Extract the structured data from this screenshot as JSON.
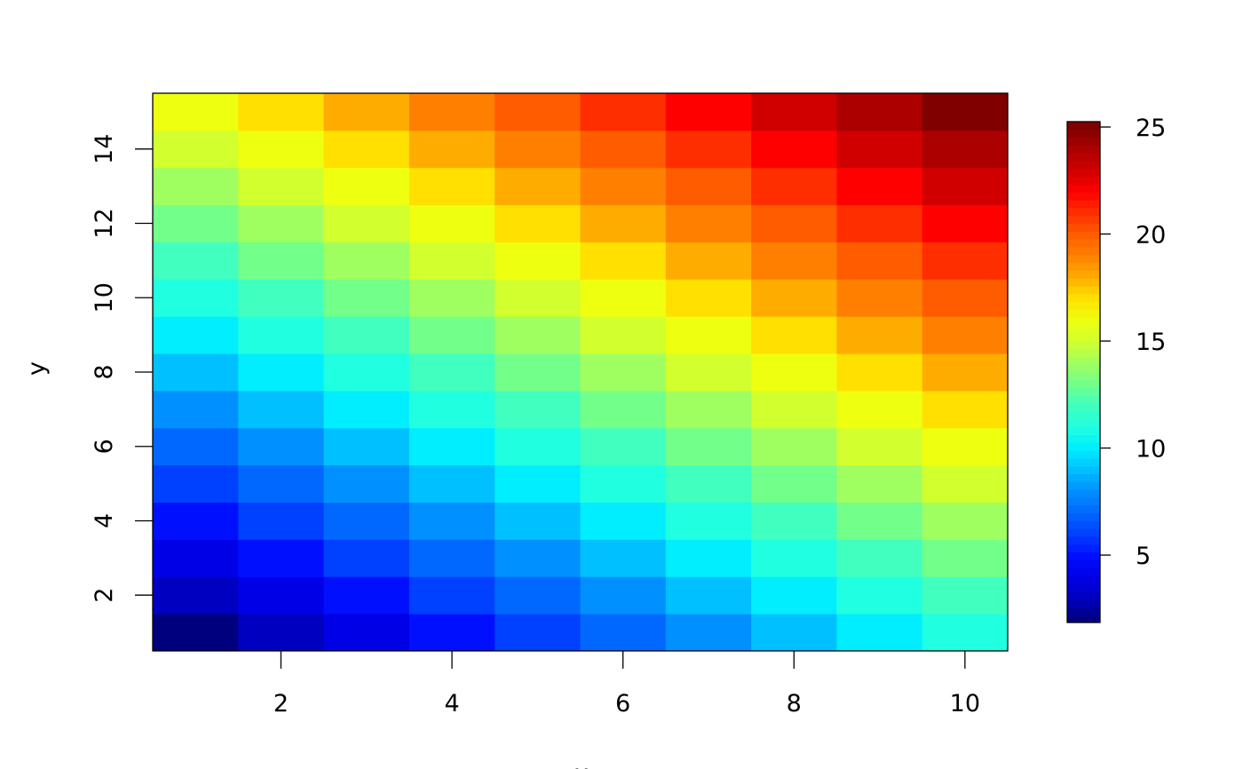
{
  "chart_data": {
    "type": "heatmap",
    "xlabel": "x",
    "ylabel": "y",
    "x": [
      1,
      2,
      3,
      4,
      5,
      6,
      7,
      8,
      9,
      10
    ],
    "y": [
      1,
      2,
      3,
      4,
      5,
      6,
      7,
      8,
      9,
      10,
      11,
      12,
      13,
      14,
      15
    ],
    "z_rule": "z = x + y",
    "values": [
      [
        2,
        3,
        4,
        5,
        6,
        7,
        8,
        9,
        10,
        11
      ],
      [
        3,
        4,
        5,
        6,
        7,
        8,
        9,
        10,
        11,
        12
      ],
      [
        4,
        5,
        6,
        7,
        8,
        9,
        10,
        11,
        12,
        13
      ],
      [
        5,
        6,
        7,
        8,
        9,
        10,
        11,
        12,
        13,
        14
      ],
      [
        6,
        7,
        8,
        9,
        10,
        11,
        12,
        13,
        14,
        15
      ],
      [
        7,
        8,
        9,
        10,
        11,
        12,
        13,
        14,
        15,
        16
      ],
      [
        8,
        9,
        10,
        11,
        12,
        13,
        14,
        15,
        16,
        17
      ],
      [
        9,
        10,
        11,
        12,
        13,
        14,
        15,
        16,
        17,
        18
      ],
      [
        10,
        11,
        12,
        13,
        14,
        15,
        16,
        17,
        18,
        19
      ],
      [
        11,
        12,
        13,
        14,
        15,
        16,
        17,
        18,
        19,
        20
      ],
      [
        12,
        13,
        14,
        15,
        16,
        17,
        18,
        19,
        20,
        21
      ],
      [
        13,
        14,
        15,
        16,
        17,
        18,
        19,
        20,
        21,
        22
      ],
      [
        14,
        15,
        16,
        17,
        18,
        19,
        20,
        21,
        22,
        23
      ],
      [
        15,
        16,
        17,
        18,
        19,
        20,
        21,
        22,
        23,
        24
      ],
      [
        16,
        17,
        18,
        19,
        20,
        21,
        22,
        23,
        24,
        25
      ]
    ],
    "xlim": [
      0.5,
      10.5
    ],
    "ylim": [
      0.5,
      15.5
    ],
    "x_ticks": [
      "2",
      "4",
      "6",
      "8",
      "10"
    ],
    "y_ticks": [
      "2",
      "4",
      "6",
      "8",
      "10",
      "12",
      "14"
    ],
    "zlim": [
      2,
      25
    ],
    "colorbar_ticks": [
      "5",
      "10",
      "15",
      "20",
      "25"
    ],
    "colorbar_placement": "right",
    "colormap": "jet",
    "colors": {
      "2": "#00007F",
      "3": "#0000C0",
      "4": "#0000E6",
      "5": "#0010FF",
      "6": "#0040FF",
      "7": "#0068FF",
      "8": "#0090FF",
      "9": "#00C0FF",
      "10": "#00EEFF",
      "11": "#20FFDF",
      "12": "#40FFBF",
      "13": "#72FF8A",
      "14": "#A0FF60",
      "15": "#D2FF2E",
      "16": "#EEFF10",
      "17": "#FFE000",
      "18": "#FFAC00",
      "19": "#FF8000",
      "20": "#FF5C00",
      "21": "#FF2E00",
      "22": "#FF0000",
      "23": "#D00000",
      "24": "#AC0000",
      "25": "#800000"
    },
    "grid": false
  }
}
